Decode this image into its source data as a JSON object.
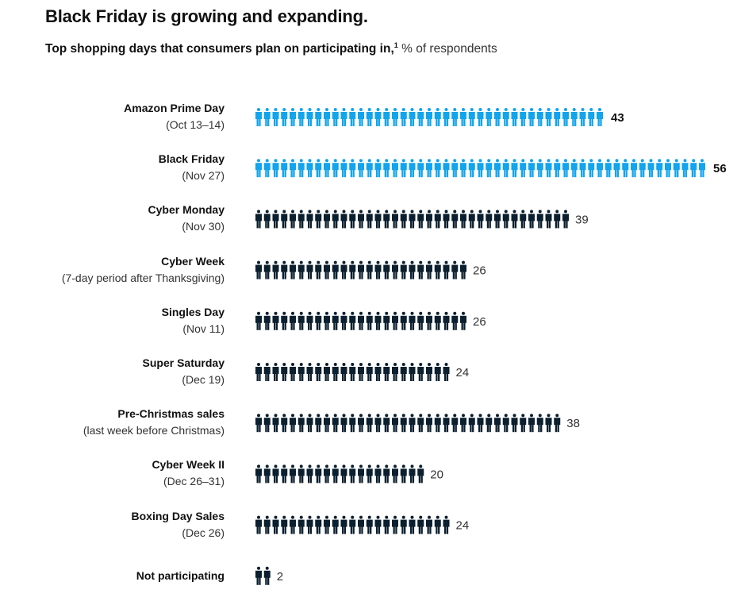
{
  "title": "Black Friday is growing and expanding.",
  "subtitle": {
    "main": "Top shopping days that consumers plan on participating in,",
    "footnote": "1",
    "unit": "% of respondents"
  },
  "chart_data": {
    "type": "pictogram-bar",
    "title": "Black Friday is growing and expanding.",
    "subtitle": "Top shopping days that consumers plan on participating in, % of respondents",
    "categories": [
      {
        "name": "Amazon Prime Day",
        "detail": "(Oct 13–14)",
        "value": 43,
        "highlight": true
      },
      {
        "name": "Black Friday",
        "detail": "(Nov 27)",
        "value": 56,
        "highlight": true
      },
      {
        "name": "Cyber Monday",
        "detail": "(Nov 30)",
        "value": 39,
        "highlight": false
      },
      {
        "name": "Cyber Week",
        "detail": "(7-day period after Thanksgiving)",
        "value": 26,
        "highlight": false
      },
      {
        "name": "Singles Day",
        "detail": "(Nov 11)",
        "value": 26,
        "highlight": false
      },
      {
        "name": "Super Saturday",
        "detail": "(Dec 19)",
        "value": 24,
        "highlight": false
      },
      {
        "name": "Pre-Christmas sales",
        "detail": "(last week before Christmas)",
        "value": 38,
        "highlight": false
      },
      {
        "name": "Cyber Week II",
        "detail": "(Dec 26–31)",
        "value": 20,
        "highlight": false
      },
      {
        "name": "Boxing Day Sales",
        "detail": "(Dec 26)",
        "value": 24,
        "highlight": false
      },
      {
        "name": "Not participating",
        "detail": "",
        "value": 2,
        "highlight": false
      }
    ],
    "icon": "person-icon",
    "colors": {
      "highlight": "#12A4EC",
      "default": "#0B1F2E"
    }
  }
}
